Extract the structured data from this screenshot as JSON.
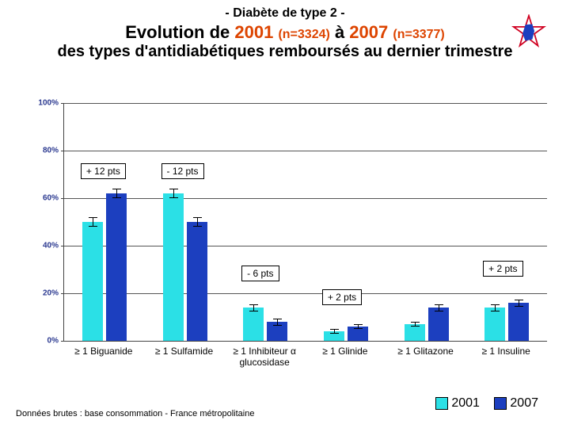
{
  "title": {
    "line1": "- Diabète de type 2 -",
    "line2_pre": "Evolution de ",
    "year1": "2001",
    "n1": "(n=3324)",
    "mid": " à ",
    "year2": "2007",
    "n2": "(n=3377)",
    "line3": "des types d'antidiabétiques remboursés au dernier trimestre"
  },
  "colors": {
    "s2001": "#2be0e6",
    "s2007": "#1c3fbf",
    "axis_label": "#2b3990",
    "annot_highlight": "#d40"
  },
  "chart": {
    "type": "grouped-bar",
    "ylim": [
      0,
      100
    ],
    "ytick_step": 20,
    "ytick_labels": [
      "0%",
      "20%",
      "40%",
      "60%",
      "80%",
      "100%"
    ],
    "categories": [
      "≥ 1 Biguanide",
      "≥ 1 Sulfamide",
      "≥ 1 Inhibiteur α glucosidase",
      "≥ 1 Glinide",
      "≥ 1 Glitazone",
      "≥ 1 Insuline"
    ],
    "series": [
      {
        "name": "2001",
        "values": [
          50,
          62,
          14,
          4,
          7,
          14
        ],
        "err": [
          2,
          2,
          1.5,
          1,
          1,
          1.5
        ]
      },
      {
        "name": "2007",
        "values": [
          62,
          50,
          8,
          6,
          14,
          16
        ],
        "err": [
          2,
          2,
          1.5,
          1,
          1.5,
          1.5
        ]
      }
    ],
    "annotations": [
      {
        "text": "+ 12 pts",
        "cat": 0,
        "y": 68
      },
      {
        "text": "- 12 pts",
        "cat": 1,
        "y": 68
      },
      {
        "text": "- 6 pts",
        "cat": 2,
        "y": 25
      },
      {
        "text": "+ 2 pts",
        "cat": 3,
        "y": 15
      },
      {
        "text": "+ 2 pts",
        "cat": 5,
        "y": 27
      }
    ]
  },
  "legend": {
    "s1": "2001",
    "s2": "2007"
  },
  "footer": "Données brutes : base consommation - France métropolitaine"
}
